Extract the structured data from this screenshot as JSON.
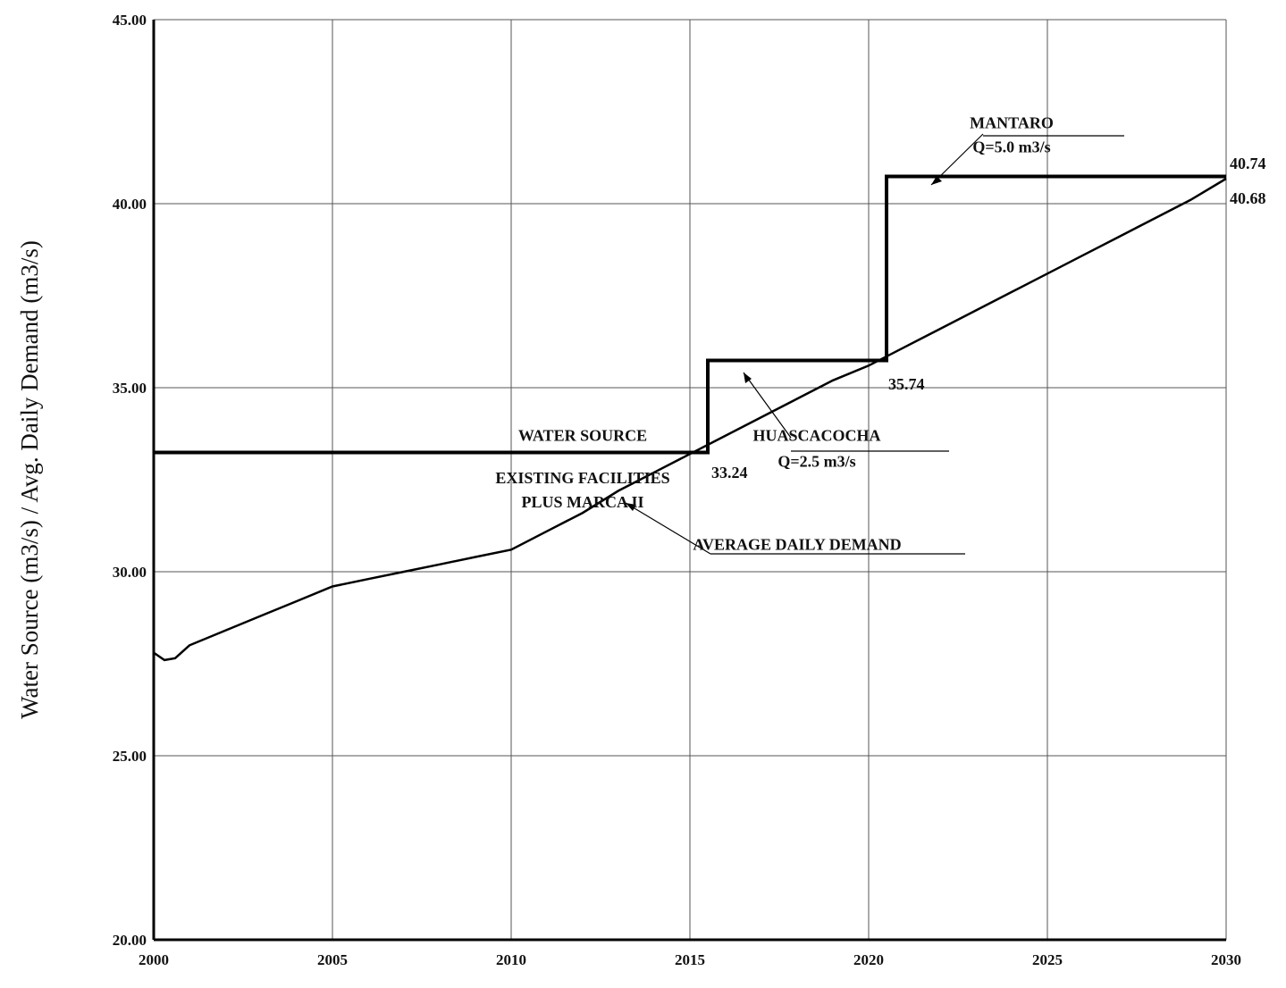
{
  "chart_data": {
    "type": "line",
    "title": "",
    "xlabel": "",
    "ylabel": "Water Source (m3/s) / Avg. Daily Demand (m3/s)",
    "xlim": [
      2000,
      2030
    ],
    "ylim": [
      20,
      45
    ],
    "x_ticks": [
      {
        "value": 2000,
        "label": "2000"
      },
      {
        "value": 2005,
        "label": "2005"
      },
      {
        "value": 2010,
        "label": "2010"
      },
      {
        "value": 2015,
        "label": "2015"
      },
      {
        "value": 2020,
        "label": "2020"
      },
      {
        "value": 2025,
        "label": "2025"
      },
      {
        "value": 2030,
        "label": "2030"
      }
    ],
    "y_ticks": [
      {
        "value": 20,
        "label": "20.00"
      },
      {
        "value": 25,
        "label": "25.00"
      },
      {
        "value": 30,
        "label": "30.00"
      },
      {
        "value": 35,
        "label": "35.00"
      },
      {
        "value": 40,
        "label": "40.00"
      },
      {
        "value": 45,
        "label": "45.00"
      }
    ],
    "grid": true,
    "series": [
      {
        "name": "WATER SOURCE",
        "step": true,
        "x": [
          2000,
          2015.5,
          2015.5,
          2020.5,
          2020.5,
          2030
        ],
        "y": [
          33.24,
          33.24,
          35.74,
          35.74,
          40.74,
          40.74
        ]
      },
      {
        "name": "AVERAGE DAILY DEMAND",
        "x": [
          2000,
          2000.3,
          2000.6,
          2001,
          2002,
          2003,
          2004,
          2005,
          2006,
          2007,
          2008,
          2009,
          2010,
          2011,
          2012,
          2013,
          2014,
          2015,
          2016,
          2017,
          2018,
          2019,
          2020,
          2021,
          2022,
          2023,
          2024,
          2025,
          2026,
          2027,
          2028,
          2029,
          2030
        ],
        "y": [
          27.8,
          27.6,
          27.65,
          28.0,
          28.4,
          28.8,
          29.2,
          29.6,
          29.8,
          30.0,
          30.2,
          30.4,
          30.6,
          31.1,
          31.6,
          32.2,
          32.7,
          33.2,
          33.7,
          34.2,
          34.7,
          35.2,
          35.6,
          36.1,
          36.6,
          37.1,
          37.6,
          38.1,
          38.6,
          39.1,
          39.6,
          40.1,
          40.68
        ]
      }
    ],
    "annotations": [
      {
        "id": "ws-label",
        "text": "WATER SOURCE",
        "x": 2012.0,
        "y": 33.55,
        "anchor": "middle"
      },
      {
        "id": "existing-label",
        "text": "EXISTING FACILITIES",
        "x": 2012.0,
        "y": 32.4,
        "anchor": "middle"
      },
      {
        "id": "marca-label",
        "text": "PLUS MARCA II",
        "x": 2012.0,
        "y": 31.75,
        "anchor": "middle"
      },
      {
        "id": "val-3324",
        "text": "33.24",
        "x": 2015.6,
        "y": 32.55,
        "anchor": "start"
      },
      {
        "id": "val-3574",
        "text": "35.74",
        "x": 2020.55,
        "y": 34.95,
        "anchor": "start"
      },
      {
        "id": "val-4074",
        "text": "40.74",
        "x": 2030.1,
        "y": 40.95,
        "anchor": "start"
      },
      {
        "id": "val-4068",
        "text": "40.68",
        "x": 2030.1,
        "y": 40.0,
        "anchor": "start"
      },
      {
        "id": "huasca-label",
        "text": "HUASCACOCHA",
        "x": 2018.55,
        "y": 33.55,
        "anchor": "middle"
      },
      {
        "id": "huasca-q",
        "text": "Q=2.5 m3/s",
        "x": 2018.55,
        "y": 32.85,
        "anchor": "middle"
      },
      {
        "id": "mantaro-label",
        "text": "MANTARO",
        "x": 2024.0,
        "y": 42.05,
        "anchor": "middle"
      },
      {
        "id": "mantaro-q",
        "text": "Q=5.0 m3/s",
        "x": 2024.0,
        "y": 41.4,
        "anchor": "middle"
      },
      {
        "id": "demand-label",
        "text": "AVERAGE DAILY DEMAND",
        "x": 2018.0,
        "y": 30.6,
        "anchor": "middle"
      }
    ]
  }
}
